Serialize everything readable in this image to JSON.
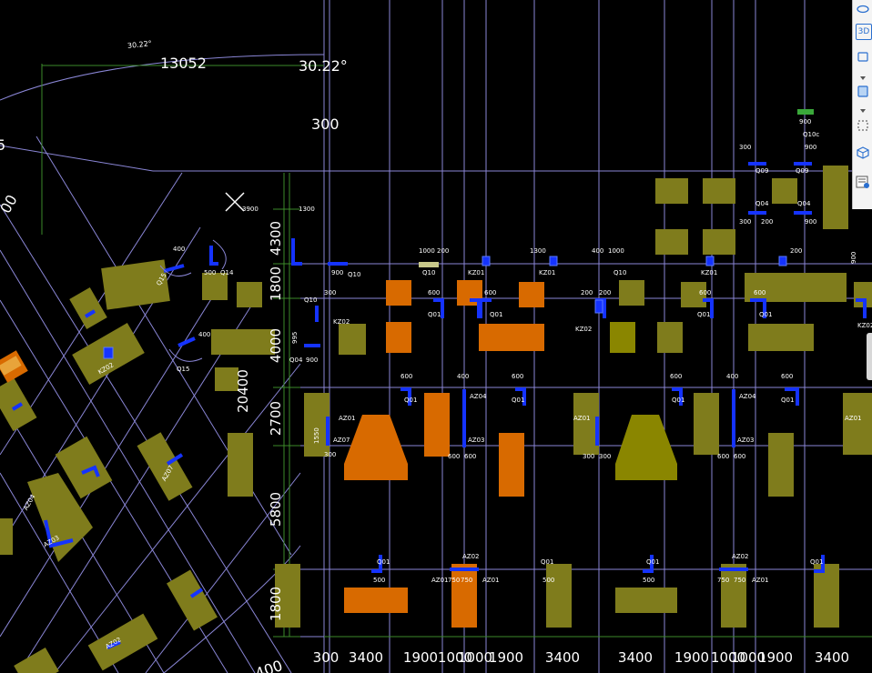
{
  "drawing": {
    "angle_dim_small": "30.22°",
    "dim_13052": "13052",
    "angle_dim_large": "30.22°",
    "dim_300_top": "300",
    "arc_dim_left": "5",
    "arc_dim_left2": "00",
    "dim_bottom_right_cut": "400",
    "vertical_dims": [
      "4300",
      "1800",
      "4000",
      "20400",
      "2700",
      "5800",
      "1800"
    ],
    "bottom_dims": [
      "300",
      "3400",
      "1900",
      "1000",
      "1000",
      "1900",
      "3400",
      "3400",
      "1900",
      "1000",
      "1000",
      "1900",
      "3400"
    ],
    "labels": {
      "q10": "Q10",
      "q01": "Q01",
      "q04": "Q04",
      "q09": "Q09",
      "q10c": "Q10c",
      "q14": "Q14",
      "q15": "Q15",
      "kz01": "KZ01",
      "kz02": "KZ02",
      "az01": "AZ01",
      "az02": "AZ02",
      "az03": "AZ03",
      "az04": "AZ04",
      "az07": "AZ07",
      "n1000": "1000",
      "n1300": "1300",
      "n900": "900",
      "n600": "600",
      "n500": "500",
      "n400": "400",
      "n300": "300",
      "n200": "200",
      "n750": "750",
      "n1550": "1550",
      "n995": "995",
      "n3900": "3900"
    }
  },
  "toolbar": {
    "icons": [
      "ring-icon",
      "3d-view-icon",
      "cube-outline-icon",
      "cube-shaded-icon",
      "selection-box-icon",
      "iso-cube-icon",
      "layer-list-icon"
    ],
    "label_3d": "3D"
  },
  "colors": {
    "background": "#000000",
    "grid": "#8a86d6",
    "olive": "#8a8600",
    "olive_dark": "#7a7a1a",
    "orange": "#d86a00",
    "wall_blue": "#1533ff",
    "dim_green": "#3d8a2a",
    "text_white": "#ffffff"
  }
}
